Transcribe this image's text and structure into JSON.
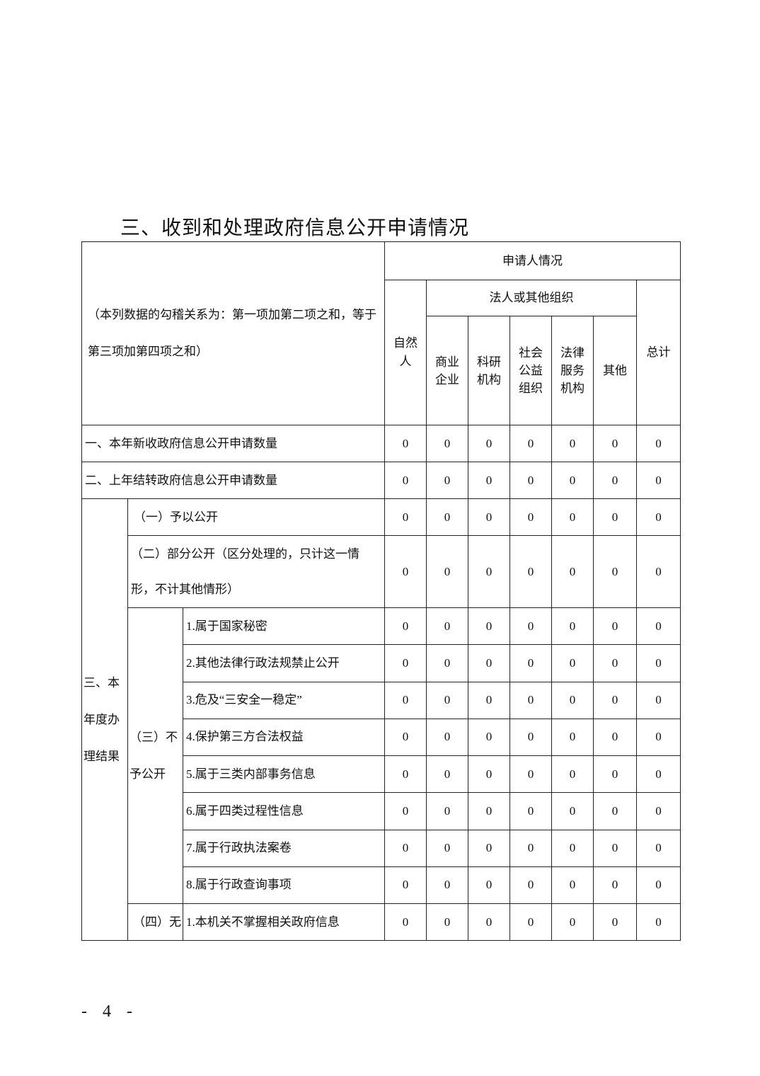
{
  "title": "三、收到和处理政府信息公开申请情况",
  "header": {
    "note": "（本列数据的勾稽关系为：第一项加第二项之和，等于第三项加第四项之和）",
    "applicant": "申请人情况",
    "natural_person": "自然人",
    "legal_group": "法人或其他组织",
    "sub": [
      "商业企业",
      "科研机构",
      "社会公益组织",
      "法律服务机构",
      "其他"
    ],
    "total": "总计"
  },
  "rows_top": [
    {
      "label": "一、本年新收政府信息公开申请数量",
      "values": [
        "0",
        "0",
        "0",
        "0",
        "0",
        "0",
        "0"
      ]
    },
    {
      "label": "二、上年结转政府信息公开申请数量",
      "values": [
        "0",
        "0",
        "0",
        "0",
        "0",
        "0",
        "0"
      ]
    }
  ],
  "section3": {
    "label": "三、本年度办理结果",
    "item1": {
      "label": "（一）予以公开",
      "values": [
        "0",
        "0",
        "0",
        "0",
        "0",
        "0",
        "0"
      ]
    },
    "item2": {
      "label": "（二）部分公开（区分处理的，只计这一情形，不计其他情形）",
      "values": [
        "0",
        "0",
        "0",
        "0",
        "0",
        "0",
        "0"
      ]
    },
    "item3": {
      "label": "（三）不予公开",
      "subs": [
        {
          "label": "1.属于国家秘密",
          "values": [
            "0",
            "0",
            "0",
            "0",
            "0",
            "0",
            "0"
          ]
        },
        {
          "label": "2.其他法律行政法规禁止公开",
          "values": [
            "0",
            "0",
            "0",
            "0",
            "0",
            "0",
            "0"
          ]
        },
        {
          "label": "3.危及“三安全一稳定”",
          "values": [
            "0",
            "0",
            "0",
            "0",
            "0",
            "0",
            "0"
          ]
        },
        {
          "label": "4.保护第三方合法权益",
          "values": [
            "0",
            "0",
            "0",
            "0",
            "0",
            "0",
            "0"
          ]
        },
        {
          "label": "5.属于三类内部事务信息",
          "values": [
            "0",
            "0",
            "0",
            "0",
            "0",
            "0",
            "0"
          ]
        },
        {
          "label": "6.属于四类过程性信息",
          "values": [
            "0",
            "0",
            "0",
            "0",
            "0",
            "0",
            "0"
          ]
        },
        {
          "label": "7.属于行政执法案卷",
          "values": [
            "0",
            "0",
            "0",
            "0",
            "0",
            "0",
            "0"
          ]
        },
        {
          "label": "8.属于行政查询事项",
          "values": [
            "0",
            "0",
            "0",
            "0",
            "0",
            "0",
            "0"
          ]
        }
      ]
    },
    "item4": {
      "label": "（四）无",
      "subs": [
        {
          "label": "1.本机关不掌握相关政府信息",
          "values": [
            "0",
            "0",
            "0",
            "0",
            "0",
            "0",
            "0"
          ]
        }
      ]
    }
  },
  "page_number": "- 4 -"
}
